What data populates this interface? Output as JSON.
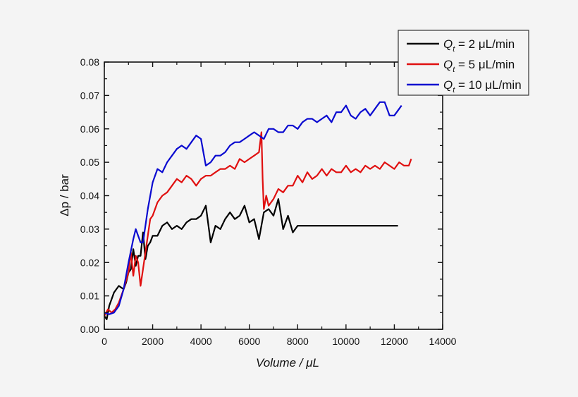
{
  "chart_data": {
    "type": "line",
    "title": "",
    "xlabel": "Volume / μL",
    "ylabel": "Δp / bar",
    "xlim": [
      0,
      14000
    ],
    "ylim": [
      0,
      0.08
    ],
    "xticks": [
      "0",
      "2000",
      "4000",
      "6000",
      "8000",
      "10000",
      "12000",
      "14000"
    ],
    "yticks": [
      "0.00",
      "0.01",
      "0.02",
      "0.03",
      "0.04",
      "0.05",
      "0.06",
      "0.07",
      "0.08"
    ],
    "grid": false,
    "legend_position": "top-right-outside",
    "series": [
      {
        "name": "Qt = 2 μL/min",
        "color": "#000000",
        "x": [
          0,
          100,
          200,
          300,
          400,
          500,
          600,
          700,
          800,
          900,
          1000,
          1100,
          1200,
          1300,
          1400,
          1500,
          1600,
          1700,
          1800,
          1900,
          2000,
          2200,
          2400,
          2600,
          2800,
          3000,
          3200,
          3400,
          3600,
          3800,
          4000,
          4200,
          4400,
          4600,
          4800,
          5000,
          5200,
          5400,
          5600,
          5800,
          6000,
          6200,
          6400,
          6600,
          6800,
          7000,
          7200,
          7400,
          7600,
          7800,
          8000,
          8500,
          9000,
          9500,
          10000,
          10500,
          11000,
          11500,
          12000,
          12150
        ],
        "values": [
          0.004,
          0.003,
          0.007,
          0.009,
          0.011,
          0.012,
          0.013,
          0.0125,
          0.012,
          0.014,
          0.017,
          0.018,
          0.024,
          0.019,
          0.022,
          0.022,
          0.029,
          0.021,
          0.025,
          0.026,
          0.028,
          0.028,
          0.031,
          0.032,
          0.03,
          0.031,
          0.03,
          0.032,
          0.033,
          0.033,
          0.034,
          0.037,
          0.026,
          0.031,
          0.03,
          0.033,
          0.035,
          0.033,
          0.034,
          0.037,
          0.032,
          0.033,
          0.027,
          0.035,
          0.036,
          0.034,
          0.039,
          0.03,
          0.034,
          0.029,
          0.031,
          0.031,
          0.031,
          0.031,
          0.031,
          0.031,
          0.031,
          0.031,
          0.031,
          0.031
        ]
      },
      {
        "name": "Qt = 5 μL/min",
        "color": "#e01010",
        "x": [
          0,
          150,
          300,
          450,
          600,
          800,
          1000,
          1100,
          1200,
          1300,
          1400,
          1500,
          1600,
          1700,
          1800,
          1900,
          2000,
          2200,
          2400,
          2600,
          2800,
          3000,
          3200,
          3400,
          3600,
          3800,
          4000,
          4200,
          4400,
          4600,
          4800,
          5000,
          5200,
          5400,
          5600,
          5800,
          6000,
          6200,
          6400,
          6500,
          6550,
          6600,
          6700,
          6800,
          7000,
          7200,
          7400,
          7600,
          7800,
          8000,
          8200,
          8400,
          8600,
          8800,
          9000,
          9200,
          9400,
          9600,
          9800,
          10000,
          10200,
          10400,
          10600,
          10800,
          11000,
          11200,
          11400,
          11600,
          11800,
          12000,
          12200,
          12400,
          12600,
          12700
        ],
        "values": [
          0.004,
          0.006,
          0.005,
          0.006,
          0.008,
          0.012,
          0.017,
          0.023,
          0.016,
          0.022,
          0.02,
          0.013,
          0.018,
          0.023,
          0.028,
          0.033,
          0.034,
          0.038,
          0.04,
          0.041,
          0.043,
          0.045,
          0.044,
          0.046,
          0.045,
          0.043,
          0.045,
          0.046,
          0.046,
          0.047,
          0.048,
          0.048,
          0.049,
          0.048,
          0.051,
          0.05,
          0.051,
          0.052,
          0.053,
          0.059,
          0.045,
          0.036,
          0.04,
          0.037,
          0.039,
          0.042,
          0.041,
          0.043,
          0.043,
          0.046,
          0.044,
          0.047,
          0.045,
          0.046,
          0.048,
          0.046,
          0.048,
          0.047,
          0.047,
          0.049,
          0.047,
          0.048,
          0.047,
          0.049,
          0.048,
          0.049,
          0.048,
          0.05,
          0.049,
          0.048,
          0.05,
          0.049,
          0.049,
          0.051
        ]
      },
      {
        "name": "Qt = 10 μL/min",
        "color": "#0a0ad0",
        "x": [
          0,
          200,
          400,
          600,
          800,
          1000,
          1200,
          1300,
          1400,
          1500,
          1600,
          1800,
          2000,
          2200,
          2400,
          2600,
          2800,
          3000,
          3200,
          3400,
          3600,
          3800,
          4000,
          4200,
          4400,
          4600,
          4800,
          5000,
          5200,
          5400,
          5600,
          5800,
          6000,
          6200,
          6400,
          6600,
          6800,
          7000,
          7200,
          7400,
          7600,
          7800,
          8000,
          8200,
          8400,
          8600,
          8800,
          9000,
          9200,
          9400,
          9600,
          9800,
          10000,
          10200,
          10400,
          10600,
          10800,
          11000,
          11200,
          11400,
          11600,
          11800,
          12000,
          12200,
          12300
        ],
        "values": [
          0.005,
          0.0045,
          0.005,
          0.007,
          0.012,
          0.02,
          0.027,
          0.03,
          0.028,
          0.026,
          0.026,
          0.036,
          0.044,
          0.048,
          0.047,
          0.05,
          0.052,
          0.054,
          0.055,
          0.054,
          0.056,
          0.058,
          0.057,
          0.049,
          0.05,
          0.052,
          0.052,
          0.053,
          0.055,
          0.056,
          0.056,
          0.057,
          0.058,
          0.059,
          0.058,
          0.057,
          0.06,
          0.06,
          0.059,
          0.059,
          0.061,
          0.061,
          0.06,
          0.062,
          0.063,
          0.063,
          0.062,
          0.063,
          0.064,
          0.062,
          0.065,
          0.065,
          0.067,
          0.064,
          0.063,
          0.065,
          0.066,
          0.064,
          0.066,
          0.068,
          0.068,
          0.064,
          0.064,
          0.066,
          0.067
        ]
      }
    ]
  }
}
